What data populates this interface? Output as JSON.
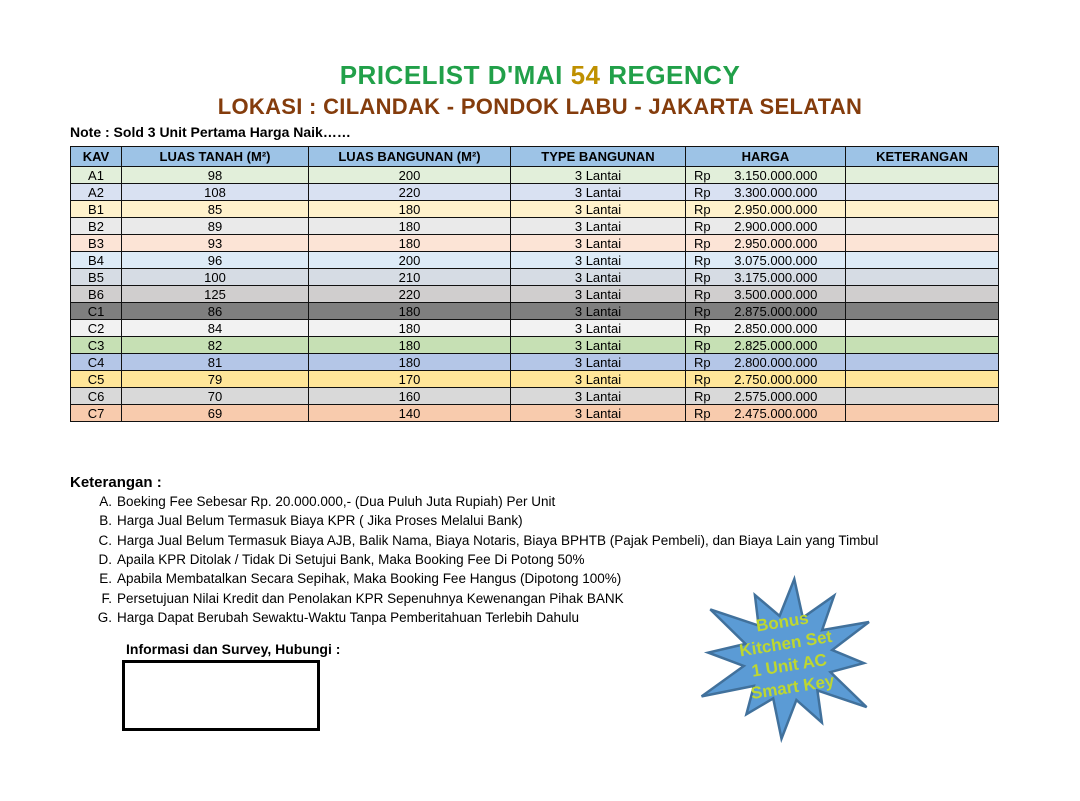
{
  "header": {
    "title_prefix": "PRICELIST D'MAI ",
    "title_number": "54",
    "title_suffix": " REGENCY",
    "subtitle": "LOKASI : CILANDAK - PONDOK LABU - JAKARTA SELATAN",
    "note": "Note : Sold 3 Unit Pertama Harga Naik……"
  },
  "colors": {
    "title_green": "#21A049",
    "title_gold": "#BF9000",
    "subtitle_brown": "#843C0C",
    "table_header_blue": "#9DC3E6",
    "badge_fill": "#5B9BD5",
    "badge_stroke": "#41719C",
    "badge_text": "#BED730"
  },
  "table": {
    "headers": [
      "KAV",
      "LUAS TANAH (M²)",
      "LUAS BANGUNAN  (M²)",
      "TYPE BANGUNAN",
      "HARGA",
      "KETERANGAN"
    ],
    "rows": [
      {
        "kav": "A1",
        "luas_tanah": "98",
        "luas_bangunan": "200",
        "type": "3 Lantai",
        "currency": "Rp",
        "harga": "3.150.000.000",
        "keterangan": "",
        "bg": "#E2EFDA",
        "fg": "#000000"
      },
      {
        "kav": "A2",
        "luas_tanah": "108",
        "luas_bangunan": "220",
        "type": "3 Lantai",
        "currency": "Rp",
        "harga": "3.300.000.000",
        "keterangan": "",
        "bg": "#D9E1F2",
        "fg": "#000000"
      },
      {
        "kav": "B1",
        "luas_tanah": "85",
        "luas_bangunan": "180",
        "type": "3 Lantai",
        "currency": "Rp",
        "harga": "2.950.000.000",
        "keterangan": "",
        "bg": "#FFF2CC",
        "fg": "#000000"
      },
      {
        "kav": "B2",
        "luas_tanah": "89",
        "luas_bangunan": "180",
        "type": "3 Lantai",
        "currency": "Rp",
        "harga": "2.900.000.000",
        "keterangan": "",
        "bg": "#EAEAEA",
        "fg": "#000000"
      },
      {
        "kav": "B3",
        "luas_tanah": "93",
        "luas_bangunan": "180",
        "type": "3 Lantai",
        "currency": "Rp",
        "harga": "2.950.000.000",
        "keterangan": "",
        "bg": "#FCE4D6",
        "fg": "#000000"
      },
      {
        "kav": "B4",
        "luas_tanah": "96",
        "luas_bangunan": "200",
        "type": "3 Lantai",
        "currency": "Rp",
        "harga": "3.075.000.000",
        "keterangan": "",
        "bg": "#DDEBF7",
        "fg": "#000000"
      },
      {
        "kav": "B5",
        "luas_tanah": "100",
        "luas_bangunan": "210",
        "type": "3 Lantai",
        "currency": "Rp",
        "harga": "3.175.000.000",
        "keterangan": "",
        "bg": "#D6DCE4",
        "fg": "#000000"
      },
      {
        "kav": "B6",
        "luas_tanah": "125",
        "luas_bangunan": "220",
        "type": "3 Lantai",
        "currency": "Rp",
        "harga": "3.500.000.000",
        "keterangan": "",
        "bg": "#D0CECE",
        "fg": "#000000"
      },
      {
        "kav": "C1",
        "luas_tanah": "86",
        "luas_bangunan": "180",
        "type": "3 Lantai",
        "currency": "Rp",
        "harga": "2.875.000.000",
        "keterangan": "",
        "bg": "#7F7F7F",
        "fg": "#000000"
      },
      {
        "kav": "C2",
        "luas_tanah": "84",
        "luas_bangunan": "180",
        "type": "3 Lantai",
        "currency": "Rp",
        "harga": "2.850.000.000",
        "keterangan": "",
        "bg": "#F2F2F2",
        "fg": "#000000"
      },
      {
        "kav": "C3",
        "luas_tanah": "82",
        "luas_bangunan": "180",
        "type": "3 Lantai",
        "currency": "Rp",
        "harga": "2.825.000.000",
        "keterangan": "",
        "bg": "#C6E0B4",
        "fg": "#000000"
      },
      {
        "kav": "C4",
        "luas_tanah": "81",
        "luas_bangunan": "180",
        "type": "3 Lantai",
        "currency": "Rp",
        "harga": "2.800.000.000",
        "keterangan": "",
        "bg": "#B4C6E7",
        "fg": "#000000"
      },
      {
        "kav": "C5",
        "luas_tanah": "79",
        "luas_bangunan": "170",
        "type": "3 Lantai",
        "currency": "Rp",
        "harga": "2.750.000.000",
        "keterangan": "",
        "bg": "#FFE699",
        "fg": "#000000"
      },
      {
        "kav": "C6",
        "luas_tanah": "70",
        "luas_bangunan": "160",
        "type": "3 Lantai",
        "currency": "Rp",
        "harga": "2.575.000.000",
        "keterangan": "",
        "bg": "#D9D9D9",
        "fg": "#000000"
      },
      {
        "kav": "C7",
        "luas_tanah": "69",
        "luas_bangunan": "140",
        "type": "3 Lantai",
        "currency": "Rp",
        "harga": "2.475.000.000",
        "keterangan": "",
        "bg": "#F8CBAD",
        "fg": "#000000"
      }
    ]
  },
  "keterangan": {
    "heading": "Keterangan :",
    "items": [
      {
        "letter": "A.",
        "text": "Boeking Fee Sebesar Rp. 20.000.000,- (Dua Puluh Juta Rupiah) Per Unit"
      },
      {
        "letter": "B.",
        "text": "Harga Jual Belum Termasuk Biaya KPR ( Jika Proses Melalui Bank)"
      },
      {
        "letter": "C.",
        "text": "Harga Jual Belum Termasuk Biaya AJB, Balik Nama, Biaya Notaris, Biaya BPHTB (Pajak Pembeli), dan Biaya Lain yang Timbul"
      },
      {
        "letter": "D.",
        "text": "Apaila KPR Ditolak / Tidak Di Setujui Bank, Maka Booking Fee Di Potong 50%"
      },
      {
        "letter": "E.",
        "text": "Apabila Membatalkan Secara Sepihak, Maka Booking Fee Hangus (Dipotong 100%)"
      },
      {
        "letter": "F.",
        "text": "Persetujuan Nilai Kredit dan Penolakan KPR Sepenuhnya Kewenangan Pihak BANK"
      },
      {
        "letter": "G.",
        "text": "Harga Dapat Berubah Sewaktu-Waktu Tanpa Pemberitahuan Terlebih Dahulu"
      }
    ]
  },
  "contact": {
    "label": "Informasi dan Survey, Hubungi :"
  },
  "badge": {
    "lines": [
      "Bonus",
      "Kitchen Set",
      "1 Unit AC",
      "Smart Key"
    ]
  }
}
